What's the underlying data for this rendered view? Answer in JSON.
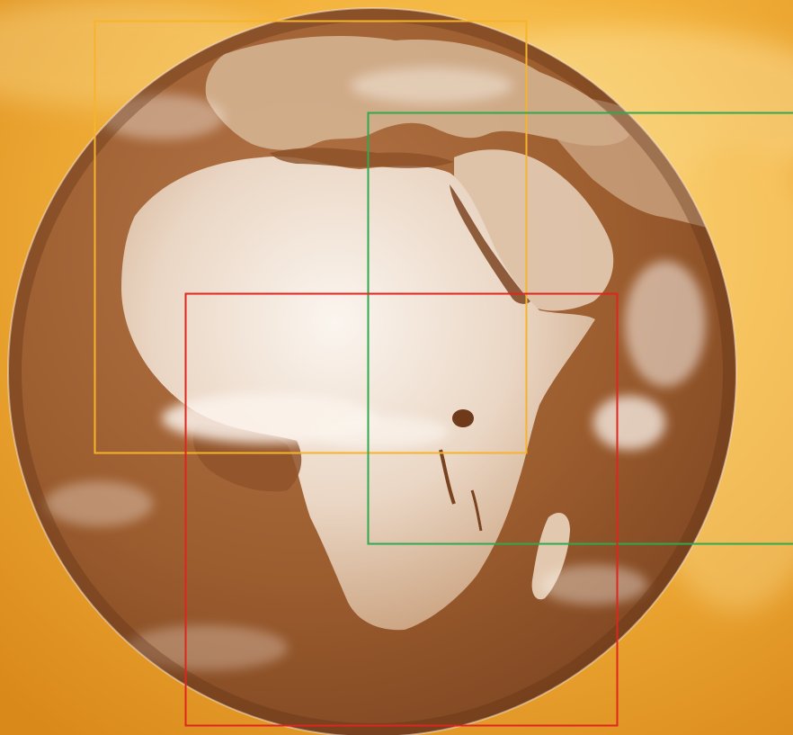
{
  "colors": {
    "background_light": "#f8c24e",
    "background_dark": "#d98b17",
    "globe_ocean": "#9a5a2c",
    "globe_land": "#e9d6c6",
    "cloud": "#fbf3ec"
  },
  "regions": [
    {
      "name": "north-africa-europe",
      "color": "#f6b42a"
    },
    {
      "name": "east-africa-middle-east",
      "color": "#2fa84f"
    },
    {
      "name": "southern-africa",
      "color": "#e0241f"
    }
  ]
}
